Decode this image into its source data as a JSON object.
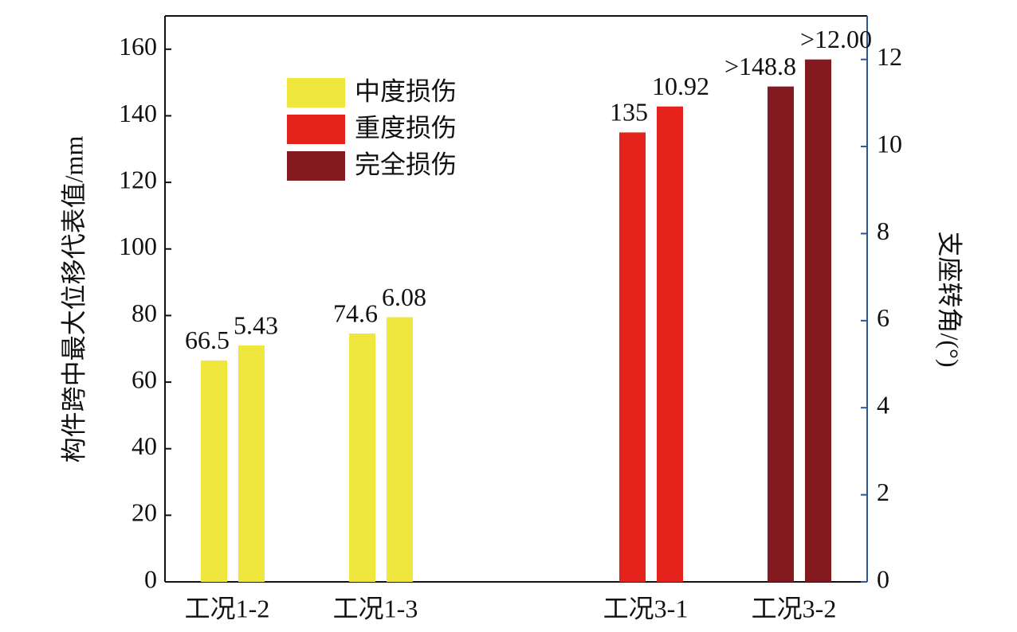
{
  "chart_data": {
    "type": "bar",
    "categories": [
      "工况1-2",
      "工况1-3",
      "工况3-1",
      "工况3-2"
    ],
    "ylabel": "构件跨中最大位移代表值/mm",
    "y2label": "支座转角/(°)",
    "ylim": [
      0,
      170
    ],
    "yticks": [
      0,
      20,
      40,
      60,
      80,
      100,
      120,
      140,
      160
    ],
    "y2lim": [
      0,
      13
    ],
    "y2ticks": [
      0,
      2,
      4,
      6,
      8,
      10,
      12
    ],
    "y2color": "#2e5597",
    "legend": [
      {
        "name": "中度损伤",
        "color": "#efe63e"
      },
      {
        "name": "重度损伤",
        "color": "#e4241c"
      },
      {
        "name": "完全损伤",
        "color": "#831a1f"
      }
    ],
    "category_legend": [
      0,
      0,
      1,
      2
    ],
    "series": [
      {
        "axis": "y",
        "values": [
          66.5,
          74.6,
          135,
          148.8
        ],
        "value_labels": [
          "66.5",
          "74.6",
          "135",
          ">148.8"
        ],
        "label_color": "#111111"
      },
      {
        "axis": "y2",
        "values": [
          5.43,
          6.08,
          10.92,
          12.0
        ],
        "value_labels": [
          "5.43",
          "6.08",
          "10.92",
          ">12.00"
        ],
        "label_color": "#2e5597"
      }
    ]
  }
}
